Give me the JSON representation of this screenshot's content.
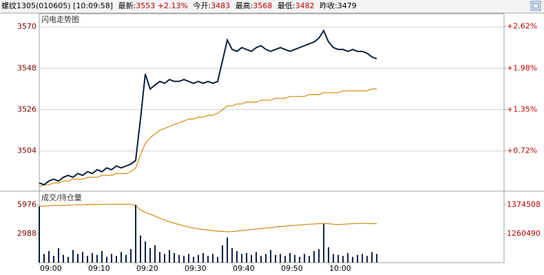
{
  "header": {
    "instrument": "螺纹1305(010605)",
    "time": "[10:09:58]",
    "latest": {
      "label": "最新:",
      "price": "3553",
      "change": "+2.13%"
    },
    "open": {
      "label": "今开:",
      "value": "3483"
    },
    "high": {
      "label": "最高:",
      "value": "3568"
    },
    "low": {
      "label": "最低:",
      "value": "3482"
    },
    "prev_close": {
      "label": "昨收:",
      "value": "3479"
    }
  },
  "chart_data": [
    {
      "type": "line",
      "title": "闪电走势图",
      "x": [
        0,
        1,
        2,
        3,
        4,
        5,
        6,
        7,
        8,
        9,
        10,
        11,
        12,
        13,
        14,
        15,
        16,
        17,
        18,
        19,
        20,
        21,
        22,
        23,
        24,
        25,
        26,
        27,
        28,
        29,
        30,
        31,
        32,
        33,
        34,
        35,
        36,
        37,
        38,
        39,
        40,
        41,
        42,
        43,
        44,
        45,
        46,
        47,
        48,
        49,
        50,
        51,
        52,
        53,
        54,
        55,
        56,
        57,
        58,
        59,
        60,
        61,
        62,
        63,
        64,
        65,
        66,
        67,
        68,
        69,
        70
      ],
      "xlim": [
        0,
        96.4
      ],
      "ylim": [
        3483,
        3577
      ],
      "yticks": [
        3504,
        3526,
        3548,
        3570
      ],
      "y2lim": [
        0.115,
        2.817
      ],
      "y2ticks": [
        {
          "value": 0.72,
          "label": "+0.72%"
        },
        {
          "value": 1.35,
          "label": "+1.35%"
        },
        {
          "value": 1.98,
          "label": "+1.98%"
        },
        {
          "value": 2.62,
          "label": "+2.62%"
        }
      ],
      "grid": true,
      "series": [
        {
          "color": "#0a1e3c",
          "values": [
            3487,
            3486,
            3488,
            3489,
            3488,
            3490,
            3491,
            3490,
            3492,
            3491,
            3493,
            3492,
            3494,
            3493,
            3495,
            3494,
            3496,
            3495,
            3496,
            3497,
            3499,
            3521,
            3545,
            3537,
            3539,
            3541,
            3540,
            3542,
            3541,
            3541,
            3542,
            3541,
            3540,
            3541,
            3540,
            3541,
            3540,
            3541,
            3552,
            3563,
            3558,
            3557,
            3559,
            3558,
            3557,
            3559,
            3560,
            3558,
            3557,
            3558,
            3559,
            3558,
            3557,
            3558,
            3559,
            3560,
            3561,
            3562,
            3564,
            3568,
            3562,
            3559,
            3558,
            3558,
            3557,
            3558,
            3557,
            3557,
            3556,
            3554,
            3553
          ]
        },
        {
          "color": "#d08a10",
          "values": [
            3485,
            3486,
            3486,
            3487,
            3487,
            3488,
            3488,
            3489,
            3489,
            3489,
            3490,
            3490,
            3490,
            3491,
            3491,
            3491,
            3492,
            3492,
            3492,
            3493,
            3495,
            3502,
            3508,
            3511,
            3513,
            3515,
            3516,
            3517,
            3518,
            3519,
            3520,
            3521,
            3521,
            3522,
            3522,
            3523,
            3523,
            3524,
            3526,
            3528,
            3528,
            3529,
            3529,
            3530,
            3530,
            3530,
            3531,
            3531,
            3531,
            3532,
            3532,
            3532,
            3533,
            3533,
            3533,
            3533,
            3534,
            3534,
            3534,
            3535,
            3535,
            3535,
            3535,
            3536,
            3536,
            3536,
            3536,
            3536,
            3536,
            3537,
            3537
          ]
        }
      ]
    },
    {
      "type": "bar",
      "title": "成交/持仓量",
      "x": [
        0,
        1,
        2,
        3,
        4,
        5,
        6,
        7,
        8,
        9,
        10,
        11,
        12,
        13,
        14,
        15,
        16,
        17,
        18,
        19,
        20,
        21,
        22,
        23,
        24,
        25,
        26,
        27,
        28,
        29,
        30,
        31,
        32,
        33,
        34,
        35,
        36,
        37,
        38,
        39,
        40,
        41,
        42,
        43,
        44,
        45,
        46,
        47,
        48,
        49,
        50,
        51,
        52,
        53,
        54,
        55,
        56,
        57,
        58,
        59,
        60,
        61,
        62,
        63,
        64,
        65,
        66,
        67,
        68,
        69,
        70
      ],
      "xlim": [
        0,
        96.4
      ],
      "xticks": [
        {
          "value": 0,
          "label": "09:00"
        },
        {
          "value": 10,
          "label": "09:10"
        },
        {
          "value": 20,
          "label": "09:20"
        },
        {
          "value": 30,
          "label": "09:30"
        },
        {
          "value": 40,
          "label": "09:40"
        },
        {
          "value": 50,
          "label": "09:50"
        },
        {
          "value": 60,
          "label": "10:00"
        }
      ],
      "ylim": [
        0,
        7328
      ],
      "yticks": [
        2988,
        5976
      ],
      "y2lim": [
        1146472,
        1426087
      ],
      "y2ticks": [
        1260490,
        1374508
      ],
      "grid": false,
      "series": [
        {
          "type": "bar",
          "color": "#0a1e3c",
          "values": [
            5800,
            900,
            1200,
            700,
            1500,
            800,
            600,
            1300,
            900,
            1100,
            700,
            1000,
            800,
            1200,
            600,
            900,
            700,
            1100,
            800,
            1400,
            5976,
            2800,
            2200,
            1500,
            1800,
            1100,
            900,
            1300,
            1000,
            800,
            700,
            900,
            600,
            800,
            1000,
            700,
            900,
            600,
            1800,
            2600,
            1500,
            1200,
            900,
            1000,
            800,
            1100,
            700,
            900,
            1300,
            800,
            900,
            700,
            1000,
            800,
            600,
            900,
            700,
            1200,
            1400,
            4000,
            1600,
            900,
            800,
            700,
            1000,
            600,
            800,
            900,
            700,
            1100,
            900
          ]
        },
        {
          "type": "line",
          "axis": "y2",
          "color": "#d08a10",
          "values": [
            1369000,
            1370000,
            1371000,
            1372000,
            1372500,
            1373000,
            1373500,
            1374000,
            1374500,
            1375000,
            1375500,
            1376000,
            1376000,
            1376500,
            1376500,
            1377000,
            1377000,
            1377000,
            1377000,
            1377000,
            1372000,
            1355000,
            1345000,
            1338000,
            1330000,
            1322000,
            1315000,
            1308000,
            1302000,
            1297000,
            1292000,
            1287000,
            1283000,
            1280000,
            1277000,
            1275000,
            1273000,
            1271000,
            1270000,
            1268500,
            1269000,
            1271000,
            1273000,
            1275000,
            1277000,
            1279000,
            1281000,
            1283000,
            1285000,
            1287000,
            1289000,
            1291000,
            1292000,
            1294000,
            1295000,
            1297000,
            1298000,
            1299000,
            1300000,
            1301000,
            1300000,
            1298000,
            1297000,
            1298000,
            1299000,
            1300000,
            1301000,
            1302000,
            1301000,
            1300000,
            1301000
          ]
        }
      ]
    }
  ]
}
